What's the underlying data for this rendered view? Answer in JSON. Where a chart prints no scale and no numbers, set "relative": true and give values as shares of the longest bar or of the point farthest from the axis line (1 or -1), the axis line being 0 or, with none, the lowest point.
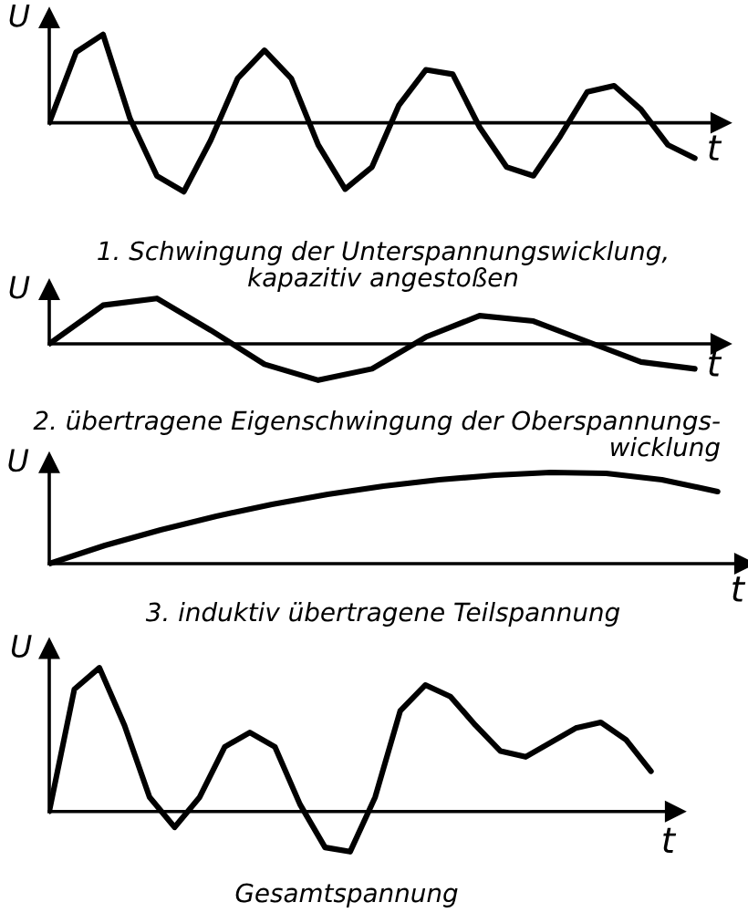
{
  "chart_data": [
    {
      "type": "line",
      "relative": true,
      "title": "1. Schwingung der Unterspannungswicklung,\nkapazitiv angestoßen",
      "xlabel": "t",
      "ylabel": "U",
      "categories": [
        null,
        null,
        null,
        null,
        null,
        null,
        null,
        null,
        null,
        null,
        null,
        null,
        null,
        null,
        null,
        null,
        null,
        null,
        null,
        null,
        null,
        null,
        null,
        null,
        null
      ],
      "series": [
        {
          "color": "#000000",
          "values": [
            0,
            0.8,
            1,
            0.05,
            -0.6,
            -0.78,
            -0.2,
            0.5,
            0.82,
            0.5,
            -0.25,
            -0.75,
            -0.5,
            0.2,
            0.6,
            0.55,
            -0.05,
            -0.5,
            -0.6,
            -0.15,
            0.35,
            0.42,
            0.15,
            -0.25,
            -0.4
          ]
        }
      ]
    },
    {
      "type": "line",
      "relative": true,
      "title": "2. übertragene Eigenschwingung der Oberspannungs-\nwicklung",
      "xlabel": "t",
      "ylabel": "U",
      "categories": [
        null,
        null,
        null,
        null,
        null,
        null,
        null,
        null,
        null,
        null,
        null,
        null,
        null
      ],
      "series": [
        {
          "color": "#000000",
          "values": [
            0,
            0.85,
            1,
            0.3,
            -0.45,
            -0.8,
            -0.55,
            0.15,
            0.62,
            0.5,
            0.05,
            -0.4,
            -0.55
          ]
        }
      ]
    },
    {
      "type": "line",
      "relative": true,
      "title": "3. induktiv übertragene Teilspannung",
      "xlabel": "t",
      "ylabel": "U",
      "categories": [
        null,
        null,
        null,
        null,
        null,
        null,
        null,
        null,
        null,
        null,
        null,
        null,
        null
      ],
      "series": [
        {
          "color": "#000000",
          "values": [
            0,
            0.2,
            0.37,
            0.52,
            0.65,
            0.76,
            0.85,
            0.92,
            0.97,
            1,
            0.99,
            0.92,
            0.79
          ]
        }
      ]
    },
    {
      "type": "line",
      "relative": true,
      "title": "Gesamtspannung",
      "xlabel": "t",
      "ylabel": "U",
      "categories": [
        null,
        null,
        null,
        null,
        null,
        null,
        null,
        null,
        null,
        null,
        null,
        null,
        null,
        null,
        null,
        null,
        null,
        null,
        null,
        null,
        null,
        null,
        null,
        null,
        null
      ],
      "series": [
        {
          "color": "#000000",
          "values": [
            0,
            0.85,
            1,
            0.6,
            0.1,
            -0.11,
            0.1,
            0.45,
            0.55,
            0.45,
            0.05,
            -0.25,
            -0.28,
            0.1,
            0.7,
            0.88,
            0.8,
            0.6,
            0.42,
            0.38,
            0.48,
            0.58,
            0.62,
            0.5,
            0.28
          ]
        }
      ]
    }
  ]
}
